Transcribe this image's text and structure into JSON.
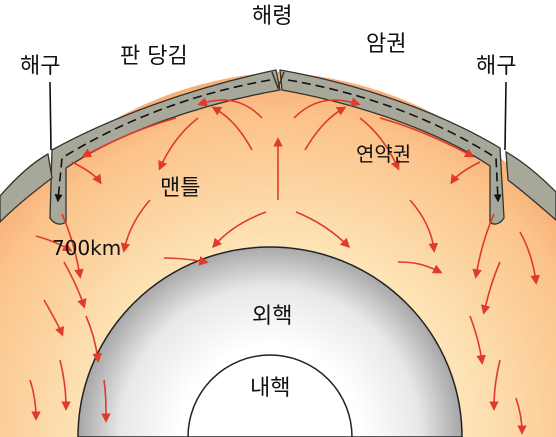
{
  "labels": {
    "ridge": "해령",
    "trench_left": "해구",
    "trench_right": "해구",
    "plate_drag": "판 당김",
    "lithosphere": "암권",
    "asthenosphere": "연약권",
    "mantle": "맨틀",
    "depth": "700km",
    "outer_core": "외핵",
    "inner_core": "내핵"
  },
  "colors": {
    "mantle_outer": "#f59a5e",
    "mantle_inner": "#fbd9a6",
    "plate": "#a8a89a",
    "outer_core": "#c9c9c9",
    "inner_core": "#ffffff",
    "convection_arrow": "#e03a2a",
    "plate_arrow": "#111111"
  },
  "arrow_icon": "convection-arrow"
}
